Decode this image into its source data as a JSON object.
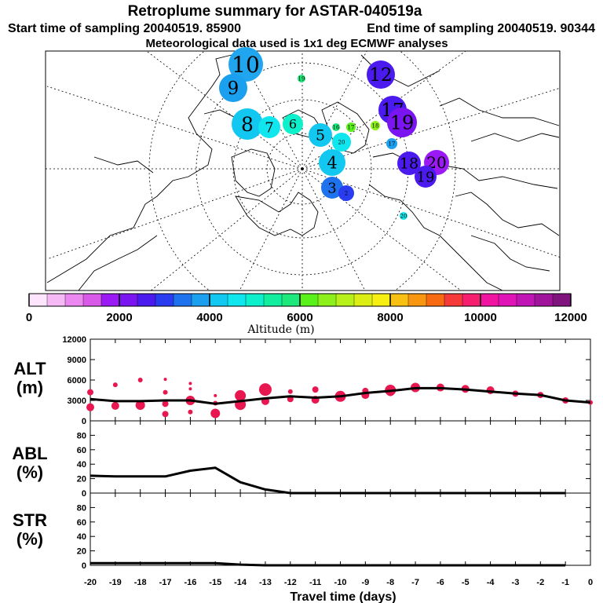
{
  "header": {
    "title": "Retroplume summary for ASTAR-040519a",
    "start_label": "Start time of sampling 20040519. 85900",
    "end_label": "End time of sampling 20040519. 90344",
    "met_label": "Meteorological data used is 1x1 deg ECMWF analyses"
  },
  "colors": {
    "marker": "#e8174f",
    "line": "#000000",
    "colorbar": [
      "#fde6fd",
      "#f5b9f5",
      "#ec89f0",
      "#d95ae8",
      "#9a19f5",
      "#7a14f0",
      "#4a1aee",
      "#2a3cf0",
      "#1f72ee",
      "#1aa0ee",
      "#12c8f0",
      "#10e6ee",
      "#0cf0cc",
      "#10ee9e",
      "#1ce87c",
      "#5af01a",
      "#8ef01a",
      "#b8f01a",
      "#dcef14",
      "#f8ef12",
      "#f8c012",
      "#f89612",
      "#f86a12",
      "#f63a3a",
      "#f61e6e",
      "#f014a0",
      "#e014b6",
      "#c014b4",
      "#a0149c",
      "#80147f"
    ]
  },
  "map": {
    "colorbar_label": "Altitude (m)",
    "colorbar_ticks": [
      "0",
      "2000",
      "4000",
      "6000",
      "8000",
      "10000",
      "12000"
    ],
    "markers": [
      {
        "label": "10",
        "color": "#1fa6ee",
        "size": 22
      },
      {
        "label": "9",
        "color": "#1aa0ee",
        "size": 18
      },
      {
        "label": "8",
        "color": "#12c8f0",
        "size": 20
      },
      {
        "label": "7",
        "color": "#10e6ee",
        "size": 14
      },
      {
        "label": "6",
        "color": "#0cf0cc",
        "size": 13
      },
      {
        "label": "5",
        "color": "#12c8f0",
        "size": 15
      },
      {
        "label": "4",
        "color": "#12c8f0",
        "size": 17
      },
      {
        "label": "3",
        "color": "#1f72ee",
        "size": 14
      },
      {
        "label": "2",
        "color": "#2a3cf0",
        "size": 10
      },
      {
        "label": "19",
        "color": "#1ce87c",
        "size": 5
      },
      {
        "label": "18",
        "color": "#8ef01a",
        "size": 6
      },
      {
        "label": "17",
        "color": "#5af01a",
        "size": 6
      },
      {
        "label": "16",
        "color": "#1ce87c",
        "size": 5
      },
      {
        "label": "20",
        "color": "#10e6ee",
        "size": 12
      },
      {
        "label": "17",
        "color": "#1aa0ee",
        "size": 7
      },
      {
        "label": "20",
        "color": "#10e6ee",
        "size": 5
      },
      {
        "label": "12",
        "color": "#4a1aee",
        "size": 18
      },
      {
        "label": "17",
        "color": "#4a1aee",
        "size": 18
      },
      {
        "label": "19",
        "color": "#7a14f0",
        "size": 19
      },
      {
        "label": "18",
        "color": "#4a1aee",
        "size": 15
      },
      {
        "label": "20",
        "color": "#9a19f5",
        "size": 16
      },
      {
        "label": "19",
        "color": "#4a1aee",
        "size": 14
      }
    ]
  },
  "chart_data": [
    {
      "type": "line",
      "label_main": "ALT",
      "label_unit": "(m)",
      "ylim": [
        0,
        12000
      ],
      "y_ticks": [
        0,
        3000,
        6000,
        9000,
        12000
      ],
      "x": [
        -20,
        -19,
        -18,
        -17,
        -16,
        -15,
        -14,
        -13,
        -12,
        -11,
        -10,
        -9,
        -8,
        -7,
        -6,
        -5,
        -4,
        -3,
        -2,
        -1,
        0
      ],
      "values": [
        3200,
        2900,
        2900,
        3000,
        3000,
        2500,
        2900,
        3300,
        3600,
        3400,
        3600,
        4100,
        4400,
        4800,
        4800,
        4600,
        4300,
        4000,
        3800,
        3000,
        2700
      ],
      "markers": [
        {
          "x": -20,
          "y": 4200,
          "s": 4
        },
        {
          "x": -20,
          "y": 2000,
          "s": 5
        },
        {
          "x": -19,
          "y": 5300,
          "s": 3
        },
        {
          "x": -19,
          "y": 2200,
          "s": 5
        },
        {
          "x": -18,
          "y": 6000,
          "s": 3
        },
        {
          "x": -18,
          "y": 2300,
          "s": 6
        },
        {
          "x": -17,
          "y": 6100,
          "s": 2
        },
        {
          "x": -17,
          "y": 4200,
          "s": 3
        },
        {
          "x": -17,
          "y": 2500,
          "s": 4
        },
        {
          "x": -17,
          "y": 1000,
          "s": 4
        },
        {
          "x": -16,
          "y": 5500,
          "s": 2
        },
        {
          "x": -16,
          "y": 4700,
          "s": 2
        },
        {
          "x": -16,
          "y": 3000,
          "s": 6
        },
        {
          "x": -16,
          "y": 1300,
          "s": 3
        },
        {
          "x": -15,
          "y": 3700,
          "s": 2
        },
        {
          "x": -15,
          "y": 2600,
          "s": 3
        },
        {
          "x": -15,
          "y": 1100,
          "s": 6
        },
        {
          "x": -14,
          "y": 3700,
          "s": 7
        },
        {
          "x": -14,
          "y": 2400,
          "s": 7
        },
        {
          "x": -13,
          "y": 4600,
          "s": 8
        },
        {
          "x": -13,
          "y": 2900,
          "s": 5
        },
        {
          "x": -12,
          "y": 4300,
          "s": 3
        },
        {
          "x": -12,
          "y": 3200,
          "s": 4
        },
        {
          "x": -11,
          "y": 4600,
          "s": 4
        },
        {
          "x": -11,
          "y": 3100,
          "s": 5
        },
        {
          "x": -10,
          "y": 3600,
          "s": 7
        },
        {
          "x": -9,
          "y": 4400,
          "s": 4
        },
        {
          "x": -9,
          "y": 3800,
          "s": 5
        },
        {
          "x": -8,
          "y": 4500,
          "s": 7
        },
        {
          "x": -8,
          "y": 4200,
          "s": 5
        },
        {
          "x": -7,
          "y": 4900,
          "s": 6
        },
        {
          "x": -6,
          "y": 4900,
          "s": 5
        },
        {
          "x": -5,
          "y": 4700,
          "s": 5
        },
        {
          "x": -4,
          "y": 4500,
          "s": 5
        },
        {
          "x": -3,
          "y": 4000,
          "s": 4
        },
        {
          "x": -2,
          "y": 3800,
          "s": 4
        },
        {
          "x": -1,
          "y": 3000,
          "s": 4
        },
        {
          "x": 0,
          "y": 2700,
          "s": 3
        }
      ]
    },
    {
      "type": "line",
      "label_main": "ABL",
      "label_unit": "(%)",
      "ylim": [
        0,
        100
      ],
      "y_ticks": [
        0,
        20,
        40,
        60,
        80
      ],
      "x": [
        -20,
        -19,
        -18,
        -17,
        -16,
        -15,
        -14,
        -13,
        -12,
        -11,
        -10,
        -9,
        -8,
        -7,
        -6,
        -5,
        -4,
        -3,
        -2,
        -1
      ],
      "values": [
        24,
        23,
        23,
        23,
        31,
        35,
        15,
        5,
        0,
        0,
        0,
        0,
        0,
        0,
        0,
        0,
        0,
        0,
        0,
        0
      ]
    },
    {
      "type": "line",
      "label_main": "STR",
      "label_unit": "(%)",
      "ylim": [
        0,
        100
      ],
      "y_ticks": [
        0,
        20,
        40,
        60,
        80
      ],
      "x": [
        -20,
        -19,
        -18,
        -17,
        -16,
        -15,
        -14,
        -13,
        -12,
        -11,
        -10,
        -9,
        -8,
        -7,
        -6,
        -5,
        -4,
        -3,
        -2,
        -1
      ],
      "values": [
        3,
        3,
        3,
        3,
        3,
        3,
        1,
        0,
        0,
        0,
        0,
        0,
        0,
        0,
        0,
        0,
        0,
        0,
        0,
        0
      ],
      "xlabel": "Travel time (days)",
      "x_ticks": [
        "-20",
        "-19",
        "-18",
        "-17",
        "-16",
        "-15",
        "-14",
        "-13",
        "-12",
        "-11",
        "-10",
        "-9",
        "-8",
        "-7",
        "-6",
        "-5",
        "-4",
        "-3",
        "-2",
        "-1",
        "0"
      ]
    }
  ]
}
